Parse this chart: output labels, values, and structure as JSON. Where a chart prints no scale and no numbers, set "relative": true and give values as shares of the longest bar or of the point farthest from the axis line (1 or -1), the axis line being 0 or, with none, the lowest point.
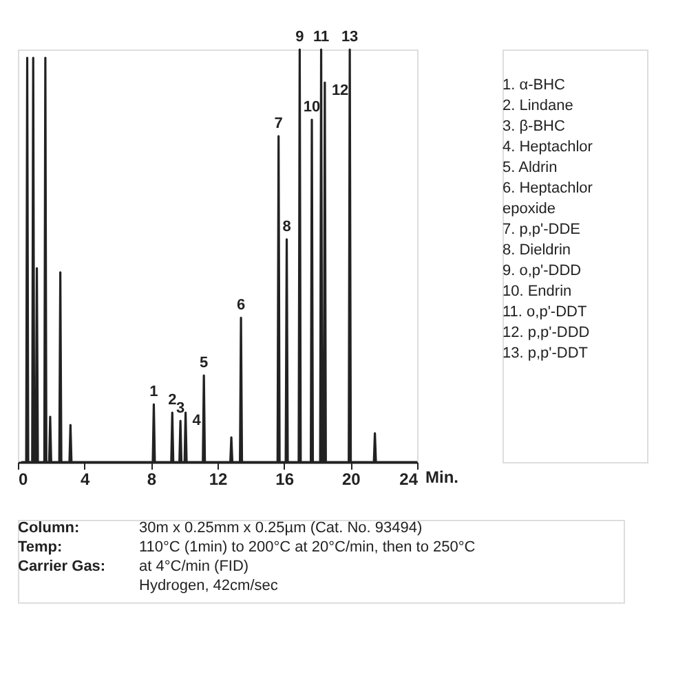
{
  "chart_data": {
    "type": "line",
    "relative": true,
    "xlabel": "Min.",
    "xlim": [
      0,
      24
    ],
    "xticks": [
      0,
      4,
      8,
      12,
      16,
      20,
      24
    ],
    "grid": false,
    "x": [
      0.2,
      0.5,
      0.56,
      0.62,
      0.86,
      0.92,
      0.98,
      1.08,
      1.14,
      1.2,
      1.59,
      1.65,
      1.71,
      1.88,
      1.94,
      2.0,
      2.49,
      2.55,
      2.61,
      3.1,
      3.16,
      3.22,
      8.11,
      8.17,
      8.23,
      9.22,
      9.28,
      9.34,
      9.71,
      9.77,
      9.83,
      10.02,
      10.08,
      10.14,
      11.12,
      11.18,
      11.24,
      12.77,
      12.83,
      12.89,
      13.35,
      13.41,
      13.47,
      15.61,
      15.67,
      15.73,
      16.1,
      16.16,
      16.22,
      16.88,
      16.94,
      17.0,
      17.61,
      17.67,
      17.73,
      18.17,
      18.23,
      18.29,
      18.39,
      18.45,
      18.51,
      19.89,
      19.95,
      20.01,
      21.4,
      21.46,
      21.52,
      24
    ],
    "series": [
      {
        "color": "#222222",
        "values": [
          0,
          0,
          0.98,
          0,
          0,
          0.98,
          0,
          0,
          0.47,
          0,
          0,
          0.98,
          0,
          0,
          0.11,
          0,
          0,
          0.46,
          0,
          0,
          0.09,
          0,
          0,
          0.14,
          0,
          0,
          0.12,
          0,
          0,
          0.1,
          0,
          0,
          0.12,
          0,
          0,
          0.21,
          0,
          0,
          0.06,
          0,
          0,
          0.35,
          0,
          0,
          0.79,
          0,
          0,
          0.54,
          0,
          0,
          1.0,
          0,
          0,
          0.83,
          0,
          0,
          1.0,
          0,
          0,
          0.92,
          0,
          0,
          1.0,
          0,
          0,
          0.07,
          0,
          0
        ]
      }
    ],
    "annotations": [
      {
        "text": "1",
        "x": 8.17,
        "y": 0.14
      },
      {
        "text": "2",
        "x": 9.28,
        "y": 0.12
      },
      {
        "text": "3",
        "x": 9.77,
        "y": 0.1
      },
      {
        "text": "4",
        "x": 10.08,
        "y": 0.12
      },
      {
        "text": "5",
        "x": 11.18,
        "y": 0.21
      },
      {
        "text": "6",
        "x": 13.41,
        "y": 0.35
      },
      {
        "text": "7",
        "x": 15.67,
        "y": 0.79
      },
      {
        "text": "8",
        "x": 16.16,
        "y": 0.54
      },
      {
        "text": "9",
        "x": 16.94,
        "y": 1.0
      },
      {
        "text": "10",
        "x": 17.67,
        "y": 0.83
      },
      {
        "text": "11",
        "x": 18.23,
        "y": 1.0
      },
      {
        "text": "12",
        "x": 18.45,
        "y": 0.92
      },
      {
        "text": "13",
        "x": 19.95,
        "y": 1.0
      },
      "1. α-BHC\n2. Lindane\n3. β-BHC\n4. Heptachlor\n5. Aldrin\n6. Heptachlor\n    epoxide\n7. p,p'-DDE\n8. Dieldrin\n9. o,p'-DDD\n10. Endrin\n11. o,p'-DDT\n12. p,p'-DDD\n13. p,p'-DDT",
      "Column:\nTemp:\n\nCarrier Gas:",
      "30m x 0.25mm x 0.25µm (Cat. No. 93494)\n110°C (1min) to 200°C at 20°C/min, then to 250°C\nat 4°C/min (FID)\nHydrogen, 42cm/sec"
    ]
  }
}
